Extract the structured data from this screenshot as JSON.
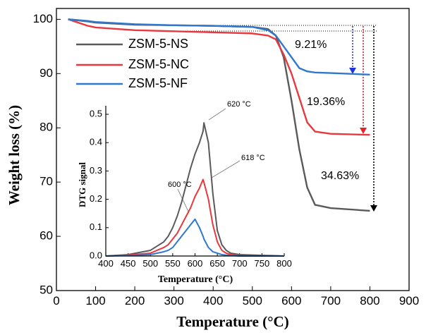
{
  "chart_data": [
    {
      "type": "line",
      "x_label": "Temperature (°C)",
      "y_label": "Weight loss (%)",
      "x": [
        30,
        80,
        100,
        200,
        300,
        400,
        500,
        540,
        560,
        580,
        600,
        620,
        640,
        660,
        700,
        800
      ],
      "series": [
        {
          "name": "ZSM-5-NS",
          "color": "#5a5a5a",
          "values": [
            100,
            99.6,
            99.4,
            99.0,
            98.9,
            98.8,
            98.6,
            98.2,
            97.0,
            93.0,
            85.0,
            76.0,
            69.0,
            65.8,
            65.2,
            64.7
          ]
        },
        {
          "name": "ZSM-5-NC",
          "color": "#e8383d",
          "values": [
            100,
            98.8,
            98.5,
            98.0,
            97.8,
            97.6,
            97.4,
            97.0,
            96.3,
            93.5,
            90.0,
            85.5,
            81.0,
            79.3,
            78.9,
            78.7
          ]
        },
        {
          "name": "ZSM-5-NF",
          "color": "#2f78d0",
          "values": [
            100,
            99.7,
            99.5,
            99.1,
            98.9,
            98.8,
            98.6,
            98.0,
            97.0,
            95.0,
            93.0,
            91.0,
            90.4,
            90.2,
            90.1,
            89.8
          ]
        }
      ],
      "xlim": [
        0,
        900
      ],
      "xticks": [
        0,
        100,
        200,
        300,
        400,
        500,
        600,
        700,
        800,
        900
      ],
      "ylim": [
        50,
        102
      ],
      "yticks": [
        50,
        60,
        70,
        80,
        90,
        100
      ],
      "annotations": [
        "9.21%",
        "19.36%",
        "34.63%"
      ]
    },
    {
      "type": "line",
      "x_label": "Temperature (°C)",
      "y_label": "DTG signal",
      "x": [
        400,
        450,
        500,
        530,
        540,
        550,
        560,
        570,
        580,
        590,
        600,
        610,
        618,
        620,
        630,
        640,
        650,
        660,
        670,
        680,
        700,
        800
      ],
      "series": [
        {
          "color": "#5a5a5a",
          "values": [
            0,
            0.005,
            0.02,
            0.05,
            0.07,
            0.1,
            0.14,
            0.19,
            0.25,
            0.31,
            0.36,
            0.4,
            0.44,
            0.47,
            0.4,
            0.22,
            0.09,
            0.04,
            0.02,
            0.01,
            0.005,
            0
          ]
        },
        {
          "color": "#e8383d",
          "values": [
            0,
            0.003,
            0.01,
            0.03,
            0.04,
            0.06,
            0.08,
            0.11,
            0.14,
            0.17,
            0.21,
            0.24,
            0.27,
            0.26,
            0.2,
            0.11,
            0.05,
            0.02,
            0.01,
            0.005,
            0.002,
            0
          ]
        },
        {
          "color": "#2f78d0",
          "values": [
            0,
            0.002,
            0.005,
            0.015,
            0.02,
            0.03,
            0.05,
            0.07,
            0.09,
            0.11,
            0.13,
            0.1,
            0.07,
            0.06,
            0.03,
            0.015,
            0.01,
            0.005,
            0.003,
            0.002,
            0,
            0
          ]
        }
      ],
      "xlim": [
        400,
        800
      ],
      "xticks": [
        400,
        450,
        500,
        550,
        600,
        650,
        700,
        750,
        800
      ],
      "ylim": [
        0,
        0.53
      ],
      "yticks": [
        {
          "value": 0,
          "label": "0.0"
        },
        0.1,
        0.2,
        0.3,
        0.4,
        0.5
      ],
      "annotations": [
        "620 °C",
        "618 °C",
        "600 °C"
      ]
    }
  ]
}
